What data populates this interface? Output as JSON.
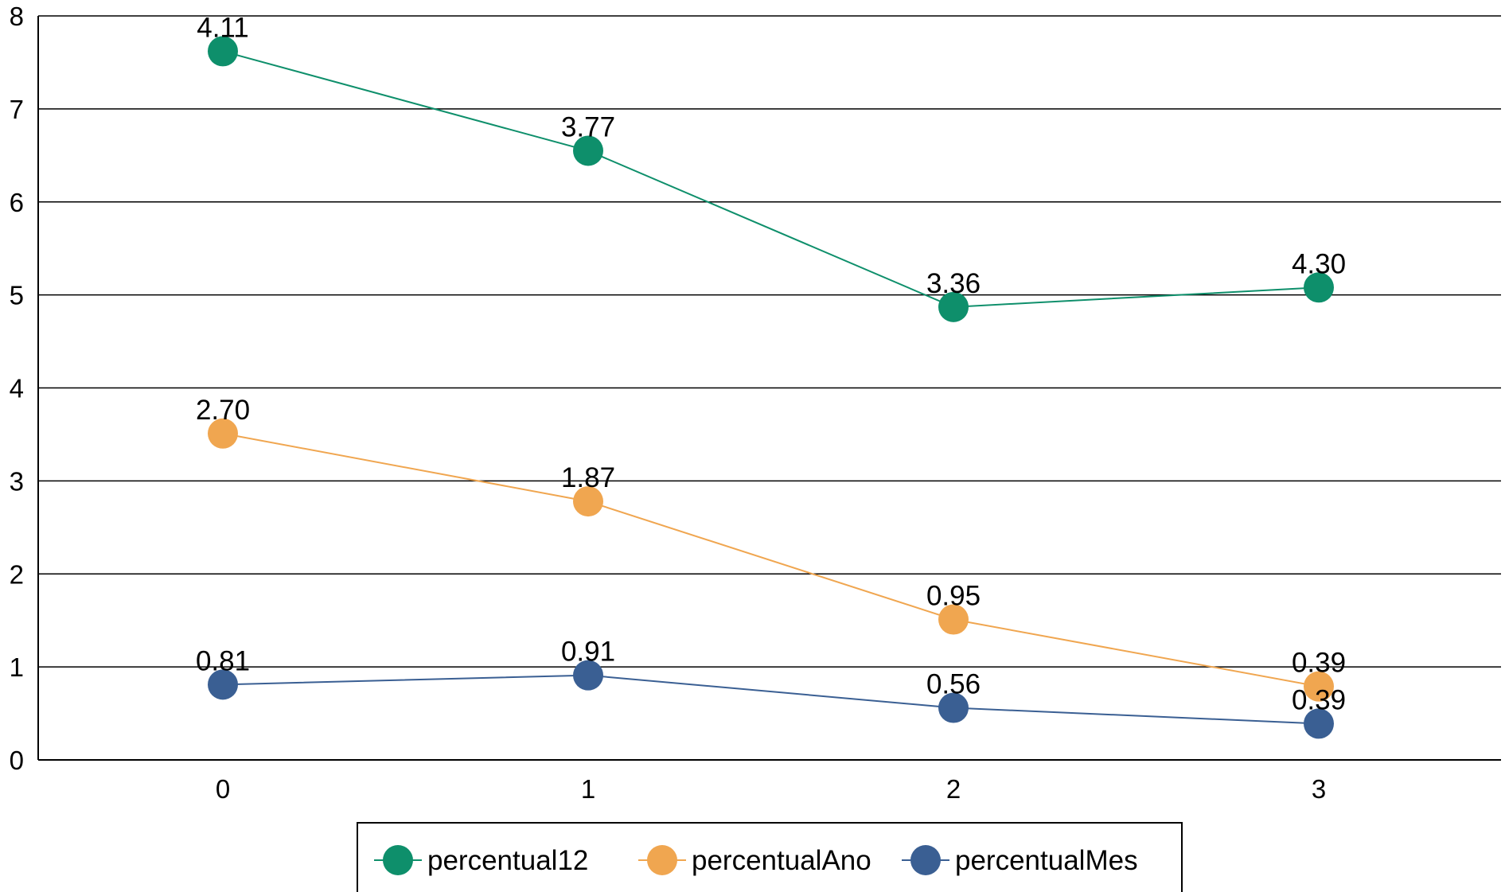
{
  "chart_data": {
    "type": "line",
    "x": [
      0,
      1,
      2,
      3
    ],
    "x_tick_labels": [
      "0",
      "1",
      "2",
      "3"
    ],
    "y_tick_labels": [
      "0",
      "1",
      "2",
      "3",
      "4",
      "5",
      "6",
      "7",
      "8"
    ],
    "ylim": [
      0,
      8
    ],
    "grid": true,
    "legend_position": "bottom",
    "series": [
      {
        "name": "percentual12",
        "color": "#0e8f6b",
        "plotted_values": [
          7.62,
          6.55,
          4.87,
          5.08
        ],
        "data_labels": [
          "4.11",
          "3.77",
          "3.36",
          "4.30"
        ]
      },
      {
        "name": "percentualAno",
        "color": "#f0a650",
        "plotted_values": [
          3.51,
          2.78,
          1.51,
          0.79
        ],
        "data_labels": [
          "2.70",
          "1.87",
          "0.95",
          "0.39"
        ]
      },
      {
        "name": "percentualMes",
        "color": "#3a5f93",
        "plotted_values": [
          0.81,
          0.91,
          0.56,
          0.39
        ],
        "data_labels": [
          "0.81",
          "0.91",
          "0.56",
          "0.39"
        ]
      }
    ]
  }
}
